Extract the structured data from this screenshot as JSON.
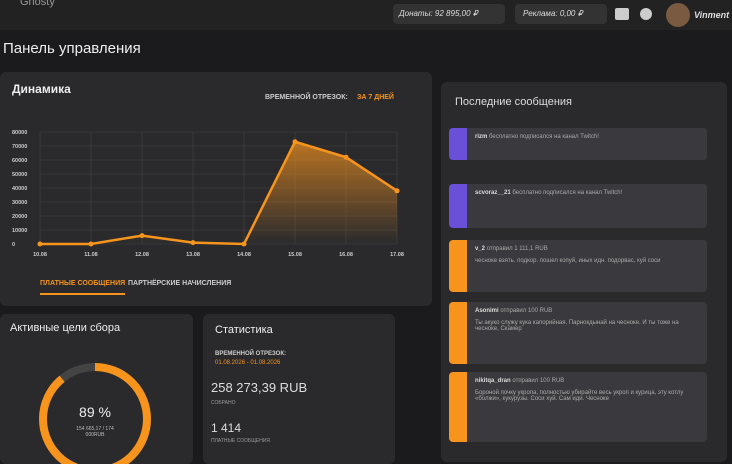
{
  "header": {
    "logo": "Ghosty",
    "donations": "Донаты: 92 895,00 ₽",
    "ads": "Реклама: 0,00 ₽",
    "user": "Vinment"
  },
  "page_title": "Панель управления",
  "dynamics": {
    "title": "Динамика",
    "period_label": "ВРЕМЕННОЙ ОТРЕЗОК:",
    "period_value": "ЗА 7 ДНЕЙ",
    "tabs": [
      "ПЛАТНЫЕ СООБЩЕНИЯ",
      "ПАРТНЁРСКИЕ НАЧИСЛЕНИЯ"
    ]
  },
  "chart_data": {
    "type": "line",
    "categories": [
      "10.08",
      "11.08",
      "12.08",
      "13.08",
      "14.08",
      "15.08",
      "16.08",
      "17.08"
    ],
    "values": [
      0,
      0,
      6000,
      1000,
      0,
      73000,
      62000,
      38000
    ],
    "color": "#f7941d",
    "ylim": [
      0,
      80000
    ],
    "yticks": [
      0,
      10000,
      20000,
      30000,
      40000,
      50000,
      60000,
      70000,
      80000
    ],
    "grid": true
  },
  "goals": {
    "title": "Активные цели сбора",
    "percent": {
      "value": 89,
      "label": "89 %"
    },
    "amount": "154 665,17 / 174 000RUB"
  },
  "stats": {
    "title": "Статистика",
    "period_label": "ВРЕМЕННОЙ ОТРЕЗОК:",
    "period_value": "01.08.2026 - 01.08.2026",
    "collected": "258 273,39 RUB",
    "collected_label": "СОБРАНО",
    "messages": "1 414",
    "messages_label": "ПЛАТНЫЕ СООБЩЕНИЯ"
  },
  "messages": {
    "title": "Последние сообщения",
    "items": [
      {
        "user": "rizm",
        "action": "бесплатно подписался на канал Twitch!"
      },
      {
        "user": "scvoraz__21",
        "action": "бесплатно подписался на канал Twitch!"
      },
      {
        "user": "v_2",
        "action": "отправил 1 111,1 RUB",
        "text": "чесноке взять. подкор. пошел копуй, иных идн. подорвас, куй соси"
      },
      {
        "user": "Asonimi",
        "action": "отправил 100 RUB",
        "text": "Ты акуко служу кука капорийная. Парнокдынай на чесноке. И ты тоже на чесноке, Скамер"
      },
      {
        "user": "nikitqa_dran",
        "action": "отправил 100 RUB",
        "text": "Бороной почку укропа, полностью убирайте весь укроп и курица, эту котлу «болжи», кукурузы. Соси хуй. Сам иди. Чесноке"
      }
    ]
  }
}
